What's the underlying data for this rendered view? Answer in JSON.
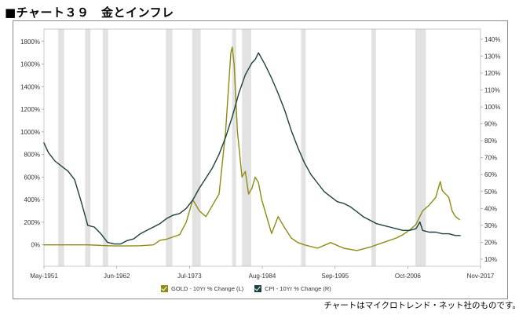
{
  "header": {
    "title": "■チャート３９　金とインフレ"
  },
  "footer": {
    "credit": "チャートはマイクロトレンド・ネット社のものです。"
  },
  "chart_data": {
    "type": "line",
    "x_tick_labels": [
      "May-1951",
      "Jun-1962",
      "Jul-1973",
      "Aug-1984",
      "Sep-1995",
      "Oct-2006",
      "Nov-2017"
    ],
    "x_ticks": [
      1951.33,
      1962.42,
      1973.5,
      1984.58,
      1995.67,
      2006.75,
      2017.83
    ],
    "xlim": [
      1951.33,
      2017.83
    ],
    "y_left": {
      "ticks": [
        0,
        200,
        400,
        600,
        800,
        1000,
        1200,
        1400,
        1600,
        1800
      ],
      "tick_labels": [
        "0%",
        "200%",
        "400%",
        "600%",
        "800%",
        "1000%",
        "1200%",
        "1400%",
        "1600%",
        "1800%"
      ],
      "lim": [
        -190,
        1910
      ]
    },
    "y_right": {
      "ticks": [
        10,
        20,
        30,
        40,
        50,
        60,
        70,
        80,
        90,
        100,
        110,
        120,
        130,
        140
      ],
      "tick_labels": [
        "10%",
        "20%",
        "30%",
        "40%",
        "50%",
        "60%",
        "70%",
        "80%",
        "90%",
        "100%",
        "110%",
        "120%",
        "130%",
        "140%"
      ],
      "lim": [
        5.8,
        146
      ]
    },
    "recessions": [
      [
        1953.5,
        1954.4
      ],
      [
        1957.6,
        1958.4
      ],
      [
        1960.3,
        1961.1
      ],
      [
        1969.9,
        1970.9
      ],
      [
        1973.9,
        1975.2
      ],
      [
        1980.0,
        1980.6
      ],
      [
        1981.5,
        1982.9
      ],
      [
        1990.5,
        1991.2
      ],
      [
        2001.2,
        2001.9
      ],
      [
        2007.9,
        2009.5
      ]
    ],
    "series": [
      {
        "name": "GOLD - 10Yr % Change (L)",
        "axis": "left",
        "color": "#8f8a12",
        "x": [
          1951.3,
          1955,
          1958,
          1960,
          1962,
          1964,
          1966,
          1968,
          1969,
          1970,
          1971,
          1972,
          1973,
          1974,
          1975,
          1976,
          1977,
          1978,
          1979,
          1979.8,
          1980.0,
          1980.3,
          1980.8,
          1981.5,
          1982,
          1982.5,
          1983,
          1983.5,
          1984,
          1984.5,
          1985,
          1986,
          1987,
          1988,
          1989,
          1990,
          1991,
          1993,
          1995,
          1997,
          1999,
          2001,
          2002,
          2003,
          2004,
          2005,
          2006,
          2007,
          2008,
          2009,
          2010,
          2011,
          2011.7,
          2012,
          2013,
          2013.5,
          2014,
          2014.7
        ],
        "y": [
          0,
          0,
          0,
          -5,
          -10,
          -10,
          -8,
          0,
          40,
          50,
          70,
          90,
          200,
          400,
          300,
          250,
          350,
          450,
          1000,
          1700,
          1750,
          1600,
          1000,
          600,
          650,
          450,
          500,
          600,
          550,
          400,
          300,
          100,
          250,
          150,
          60,
          20,
          0,
          -30,
          20,
          -30,
          -50,
          -20,
          0,
          20,
          40,
          60,
          90,
          130,
          180,
          300,
          350,
          420,
          560,
          480,
          420,
          300,
          250,
          220
        ]
      },
      {
        "name": "CPI - 10Yr % Change (R)",
        "axis": "right",
        "color": "#1d3f3f",
        "x": [
          1951.3,
          1952,
          1953,
          1954,
          1955,
          1956,
          1957,
          1958,
          1959,
          1960,
          1961,
          1962,
          1963,
          1964,
          1965,
          1966,
          1967,
          1968,
          1969,
          1970,
          1971,
          1972,
          1973,
          1974,
          1975,
          1976,
          1977,
          1978,
          1979,
          1980,
          1981,
          1982,
          1983,
          1983.5,
          1984,
          1985,
          1986,
          1987,
          1988,
          1989,
          1990,
          1991,
          1992,
          1993,
          1994,
          1995,
          1996,
          1997,
          1998,
          1999,
          2000,
          2001,
          2002,
          2003,
          2004,
          2005,
          2006,
          2007,
          2008,
          2008.6,
          2009,
          2010,
          2011,
          2012,
          2013,
          2014,
          2014.8
        ],
        "y": [
          79,
          73,
          68,
          65,
          62,
          57,
          44,
          30,
          29,
          25,
          20,
          19,
          19,
          21,
          22,
          25,
          27,
          29,
          31,
          34,
          36,
          37,
          40,
          45,
          52,
          58,
          64,
          72,
          82,
          94,
          108,
          119,
          126,
          128,
          132,
          125,
          117,
          108,
          98,
          86,
          76,
          67,
          60,
          55,
          50,
          47,
          44,
          43,
          41,
          38,
          35,
          33,
          31,
          30,
          29,
          28,
          27,
          27,
          28,
          32,
          27,
          26,
          26,
          25,
          25,
          24,
          24
        ]
      }
    ]
  }
}
